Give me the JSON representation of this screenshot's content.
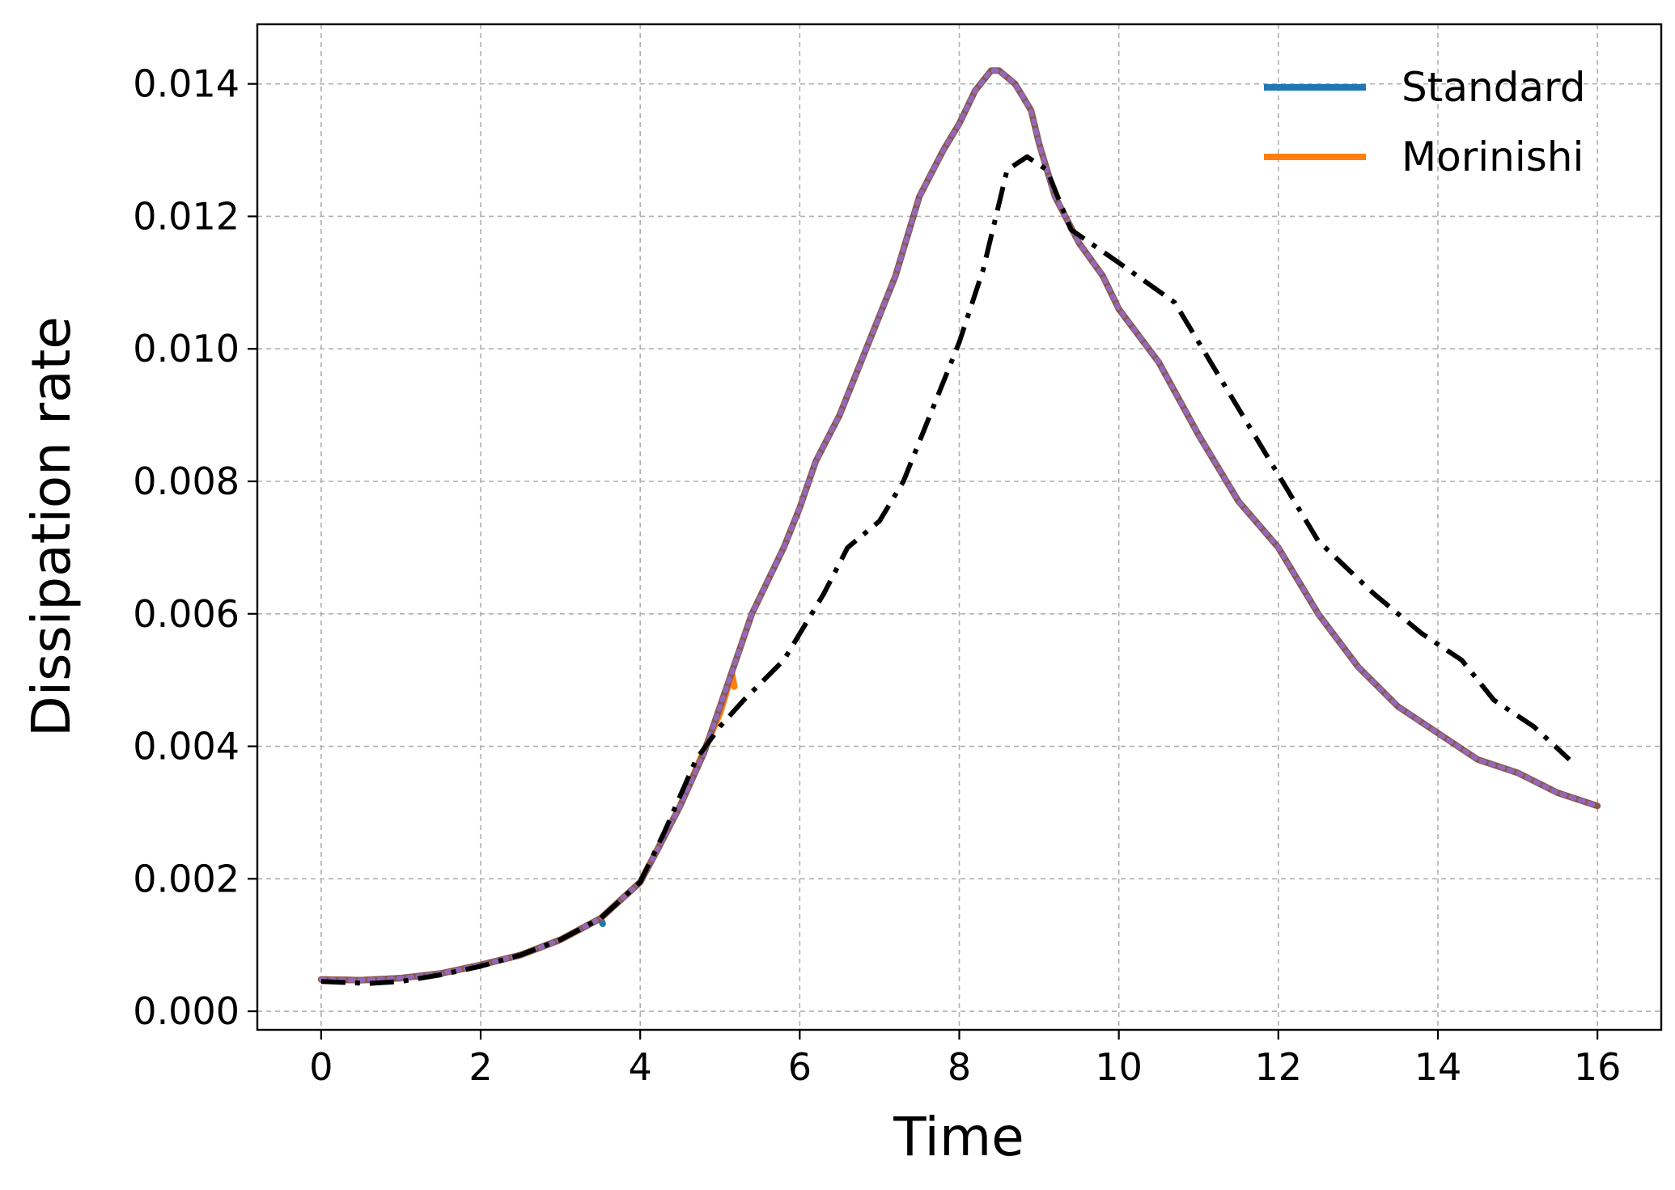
{
  "chart_data": {
    "type": "line",
    "title": "",
    "xlabel": "Time",
    "ylabel": "Dissipation rate",
    "xlim": [
      -0.8,
      16.8
    ],
    "ylim": [
      -0.00028,
      0.0149
    ],
    "xticks": [
      0,
      2,
      4,
      6,
      8,
      10,
      12,
      14,
      16
    ],
    "xtick_labels": [
      "0",
      "2",
      "4",
      "6",
      "8",
      "10",
      "12",
      "14",
      "16"
    ],
    "yticks": [
      0.0,
      0.002,
      0.004,
      0.006,
      0.008,
      0.01,
      0.012,
      0.014
    ],
    "ytick_labels": [
      "0.000",
      "0.002",
      "0.004",
      "0.006",
      "0.008",
      "0.010",
      "0.012",
      "0.014"
    ],
    "grid": true,
    "legend_position": "top-right",
    "series": [
      {
        "name": "Standard",
        "color": "#1f77b4",
        "style": "solid",
        "x": [
          0,
          0.5,
          1,
          1.5,
          2,
          2.5,
          3,
          3.5,
          3.52,
          3.53
        ],
        "y": [
          0.00048,
          0.00047,
          0.0005,
          0.00057,
          0.0007,
          0.00085,
          0.00108,
          0.0014,
          0.00135,
          0.00132
        ]
      },
      {
        "name": "Morinishi",
        "color": "#ff7f0e",
        "style": "solid",
        "x": [
          0,
          0.5,
          1,
          1.5,
          2,
          2.5,
          3,
          3.5,
          4,
          4.5,
          5,
          5.1,
          5.15,
          5.18
        ],
        "y": [
          0.00048,
          0.00047,
          0.0005,
          0.00057,
          0.0007,
          0.00085,
          0.00108,
          0.0014,
          0.00195,
          0.0031,
          0.0045,
          0.0049,
          0.0051,
          0.0049
        ]
      },
      {
        "color": "#8c564b",
        "style": "solid",
        "x": [
          0,
          0.5,
          1,
          1.5,
          2,
          2.5,
          3,
          3.5,
          4,
          4.2,
          4.5,
          4.8,
          5,
          5.2,
          5.4,
          5.6,
          5.8,
          6,
          6.2,
          6.5,
          6.8,
          7,
          7.2,
          7.5,
          7.8,
          8,
          8.2,
          8.4,
          8.5,
          8.7,
          8.9,
          9,
          9.2,
          9.5,
          9.8,
          10,
          10.5,
          11,
          11.5,
          12,
          12.5,
          13,
          13.5,
          14,
          14.5,
          15,
          15.5,
          16
        ],
        "y": [
          0.00048,
          0.00047,
          0.0005,
          0.00057,
          0.0007,
          0.00085,
          0.00108,
          0.0014,
          0.00195,
          0.0024,
          0.0031,
          0.0039,
          0.0046,
          0.0053,
          0.006,
          0.0065,
          0.007,
          0.0076,
          0.0083,
          0.009,
          0.0099,
          0.0105,
          0.0111,
          0.0123,
          0.013,
          0.0134,
          0.0139,
          0.0142,
          0.0142,
          0.014,
          0.0136,
          0.0131,
          0.0123,
          0.0116,
          0.0111,
          0.0106,
          0.0098,
          0.0087,
          0.0077,
          0.007,
          0.006,
          0.0052,
          0.0046,
          0.0042,
          0.0038,
          0.0036,
          0.0033,
          0.0031
        ]
      },
      {
        "color": "#2ca02c",
        "style": "dotted",
        "x": [
          0,
          0.5,
          1,
          1.5,
          2,
          2.5,
          3,
          3.5,
          4,
          4.2,
          4.5,
          4.8,
          5,
          5.2,
          5.4,
          5.6,
          5.8,
          6,
          6.2,
          6.5,
          6.8,
          7,
          7.2,
          7.5,
          7.8,
          8,
          8.2,
          8.4,
          8.5,
          8.7,
          8.9,
          9,
          9.2,
          9.5,
          9.8,
          10,
          10.5,
          11,
          11.5,
          12,
          12.5,
          13,
          13.5,
          14,
          14.5,
          15,
          15.5,
          16
        ],
        "y": [
          0.00048,
          0.00047,
          0.0005,
          0.00057,
          0.0007,
          0.00085,
          0.00108,
          0.0014,
          0.00195,
          0.0024,
          0.0031,
          0.0039,
          0.0046,
          0.0053,
          0.006,
          0.0065,
          0.007,
          0.0076,
          0.0083,
          0.009,
          0.0099,
          0.0105,
          0.0111,
          0.0123,
          0.013,
          0.0134,
          0.0139,
          0.0142,
          0.0142,
          0.014,
          0.0136,
          0.0131,
          0.0123,
          0.0116,
          0.0111,
          0.0106,
          0.0098,
          0.0087,
          0.0077,
          0.007,
          0.006,
          0.0052,
          0.0046,
          0.0042,
          0.0038,
          0.0036,
          0.0033,
          0.0031
        ]
      },
      {
        "color": "#9467bd",
        "style": "dotted",
        "x": [
          0,
          0.5,
          1,
          1.5,
          2,
          2.5,
          3,
          3.5,
          4,
          4.2,
          4.5,
          4.8,
          5,
          5.2,
          5.4,
          5.6,
          5.8,
          6,
          6.2,
          6.5,
          6.8,
          7,
          7.2,
          7.5,
          7.8,
          8,
          8.2,
          8.4,
          8.5,
          8.7,
          8.9,
          9,
          9.2,
          9.5,
          9.8,
          10,
          10.5,
          11,
          11.5,
          12,
          12.5,
          13,
          13.5,
          14,
          14.5,
          15,
          15.5,
          16
        ],
        "y": [
          0.00048,
          0.00047,
          0.0005,
          0.00057,
          0.0007,
          0.00085,
          0.00108,
          0.0014,
          0.00195,
          0.0024,
          0.0031,
          0.0039,
          0.0046,
          0.0053,
          0.006,
          0.0065,
          0.007,
          0.0076,
          0.0083,
          0.009,
          0.0099,
          0.0105,
          0.0111,
          0.0123,
          0.013,
          0.0134,
          0.0139,
          0.0142,
          0.0142,
          0.014,
          0.0136,
          0.0131,
          0.0123,
          0.0116,
          0.0111,
          0.0106,
          0.0098,
          0.0087,
          0.0077,
          0.007,
          0.006,
          0.0052,
          0.0046,
          0.0042,
          0.0038,
          0.0036,
          0.0033,
          0.0031
        ]
      },
      {
        "color": "#000000",
        "style": "dashdot",
        "x": [
          0,
          0.6,
          1,
          1.5,
          2,
          2.5,
          3,
          3.5,
          4,
          4.3,
          4.7,
          5,
          5.3,
          5.8,
          6.3,
          6.6,
          7,
          7.3,
          7.6,
          8,
          8.3,
          8.6,
          8.85,
          9.1,
          9.4,
          10,
          10.7,
          11.2,
          11.8,
          12.5,
          13.2,
          13.8,
          14.3,
          14.7,
          15.2,
          15.65
        ],
        "y": [
          0.00045,
          0.00042,
          0.00045,
          0.00055,
          0.00068,
          0.00085,
          0.00108,
          0.0014,
          0.00195,
          0.0027,
          0.0038,
          0.0043,
          0.0047,
          0.0053,
          0.0063,
          0.007,
          0.0074,
          0.008,
          0.0089,
          0.0101,
          0.0112,
          0.0127,
          0.0129,
          0.0127,
          0.0118,
          0.0113,
          0.0107,
          0.0097,
          0.0085,
          0.0071,
          0.0063,
          0.0057,
          0.0053,
          0.0047,
          0.0043,
          0.0038
        ]
      }
    ]
  }
}
